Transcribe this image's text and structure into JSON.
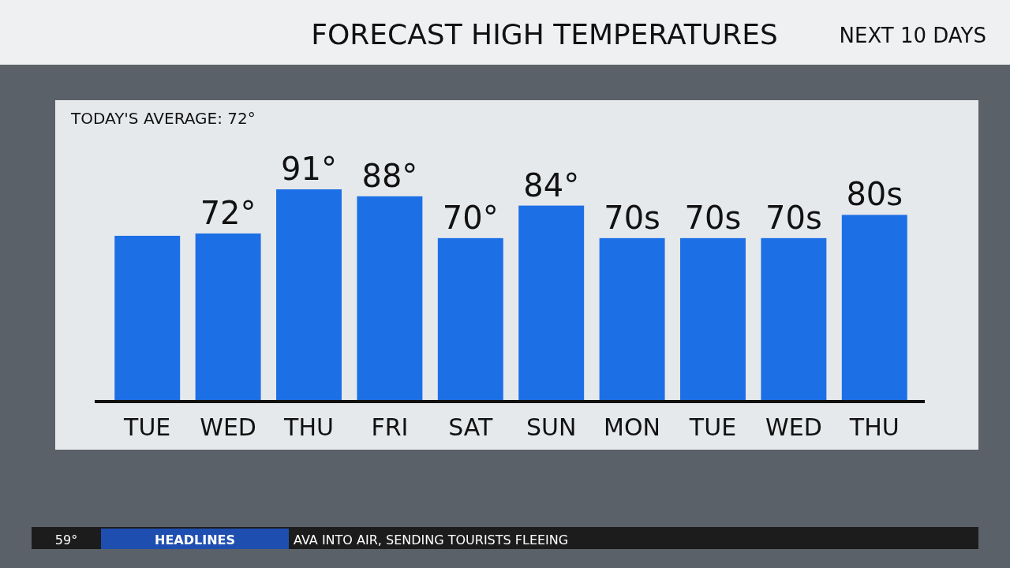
{
  "chart_data": {
    "type": "bar",
    "title": "FORECAST HIGH TEMPERATURES",
    "subtitle": "NEXT 10 DAYS",
    "annotations": [
      "TODAY'S AVERAGE: 72°",
      "59°",
      "HEADLINES",
      "AVA INTO AIR, SENDING TOURISTS FLEEING"
    ],
    "categories": [
      "TUE",
      "WED",
      "THU",
      "FRI",
      "SAT",
      "SUN",
      "MON",
      "TUE",
      "WED",
      "THU"
    ],
    "values": [
      71,
      72,
      91,
      88,
      70,
      84,
      70,
      70,
      70,
      80
    ],
    "value_labels": [
      null,
      "72°",
      "91°",
      "88°",
      "70°",
      "84°",
      "70s",
      "70s",
      "70s",
      "80s"
    ],
    "color": "#1d6fe6"
  }
}
